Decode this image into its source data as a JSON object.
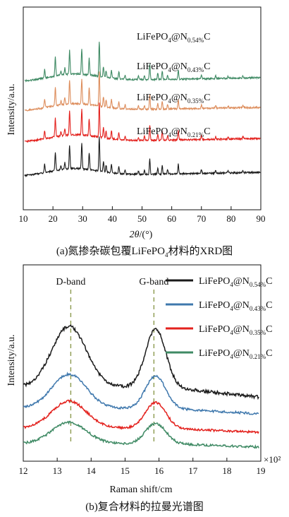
{
  "colors": {
    "black": "#1a1a1a",
    "blue": "#3f78ad",
    "red": "#e3211d",
    "orange": "#dd8d5c",
    "green": "#3f8a64",
    "dash": "#8b9a4e"
  },
  "chart_data": [
    {
      "type": "line",
      "caption_prefix": "(a)氮掺杂碳包覆LiFePO",
      "caption_sub": "4",
      "caption_suffix": "材料的XRD图",
      "ylabel": "Intensity/a.u.",
      "xlabel_main": "2θ",
      "xlabel_unit": "/(°)",
      "xlim": [
        10,
        90
      ],
      "xticks": [
        10,
        20,
        30,
        40,
        50,
        60,
        70,
        80,
        90
      ],
      "series": [
        {
          "name_main": "LiFePO",
          "name_sub1": "4",
          "name_mid": "@N",
          "name_sub2": "0.54%",
          "name_end": "C",
          "color": "#3f8a64",
          "offset": 3
        },
        {
          "name_main": "LiFePO",
          "name_sub1": "4",
          "name_mid": "@N",
          "name_sub2": "0.43%",
          "name_end": "C",
          "color": "#dd8d5c",
          "offset": 2
        },
        {
          "name_main": "LiFePO",
          "name_sub1": "4",
          "name_mid": "@N",
          "name_sub2": "0.35%",
          "name_end": "C",
          "color": "#e3211d",
          "offset": 1
        },
        {
          "name_main": "LiFePO",
          "name_sub1": "4",
          "name_mid": "@N",
          "name_sub2": "0.21%",
          "name_end": "C",
          "color": "#1a1a1a",
          "offset": 0
        }
      ],
      "peaks": [
        {
          "x": 17.2,
          "h": 0.25
        },
        {
          "x": 20.8,
          "h": 0.55
        },
        {
          "x": 22.7,
          "h": 0.12
        },
        {
          "x": 24.0,
          "h": 0.2
        },
        {
          "x": 25.6,
          "h": 0.7
        },
        {
          "x": 29.7,
          "h": 0.75
        },
        {
          "x": 32.2,
          "h": 0.5
        },
        {
          "x": 35.6,
          "h": 1.0
        },
        {
          "x": 37.0,
          "h": 0.3
        },
        {
          "x": 37.9,
          "h": 0.2
        },
        {
          "x": 39.7,
          "h": 0.25
        },
        {
          "x": 42.2,
          "h": 0.2
        },
        {
          "x": 44.3,
          "h": 0.12
        },
        {
          "x": 48.8,
          "h": 0.1
        },
        {
          "x": 50.8,
          "h": 0.12
        },
        {
          "x": 52.6,
          "h": 0.45
        },
        {
          "x": 55.3,
          "h": 0.18
        },
        {
          "x": 56.8,
          "h": 0.25
        },
        {
          "x": 58.6,
          "h": 0.12
        },
        {
          "x": 62.2,
          "h": 0.28
        },
        {
          "x": 70.0,
          "h": 0.1
        },
        {
          "x": 74.8,
          "h": 0.08
        },
        {
          "x": 79.0,
          "h": 0.06
        },
        {
          "x": 84.0,
          "h": 0.06
        }
      ]
    },
    {
      "type": "line",
      "caption": "(b)复合材料的拉曼光谱图",
      "ylabel": "Intensity/a.u.",
      "xlabel": "Raman shift/cm",
      "x_multiplier": "×10²",
      "xlim": [
        12,
        19
      ],
      "xticks": [
        12,
        13,
        14,
        15,
        16,
        17,
        18,
        19
      ],
      "bands": [
        {
          "label": "D-band",
          "x": 13.4
        },
        {
          "label": "G-band",
          "x": 15.85
        }
      ],
      "series": [
        {
          "name_main": "LiFePO",
          "name_sub1": "4",
          "name_mid": "@N",
          "name_sub2": "0.54%",
          "name_end": "C",
          "color": "#1a1a1a",
          "base": 1.0,
          "d": 3.0,
          "g": 2.8
        },
        {
          "name_main": "LiFePO",
          "name_sub1": "4",
          "name_mid": "@N",
          "name_sub2": "0.43%",
          "name_end": "C",
          "color": "#3f78ad",
          "base": 0.6,
          "d": 1.7,
          "g": 1.6
        },
        {
          "name_main": "LiFePO",
          "name_sub1": "4",
          "name_mid": "@N",
          "name_sub2": "0.35%",
          "name_end": "C",
          "color": "#e3211d",
          "base": 0.3,
          "d": 1.2,
          "g": 1.1
        },
        {
          "name_main": "LiFePO",
          "name_sub1": "4",
          "name_mid": "@N",
          "name_sub2": "0.21%",
          "name_end": "C",
          "color": "#3f8a64",
          "base": 0.1,
          "d": 0.9,
          "g": 0.8
        }
      ]
    }
  ]
}
